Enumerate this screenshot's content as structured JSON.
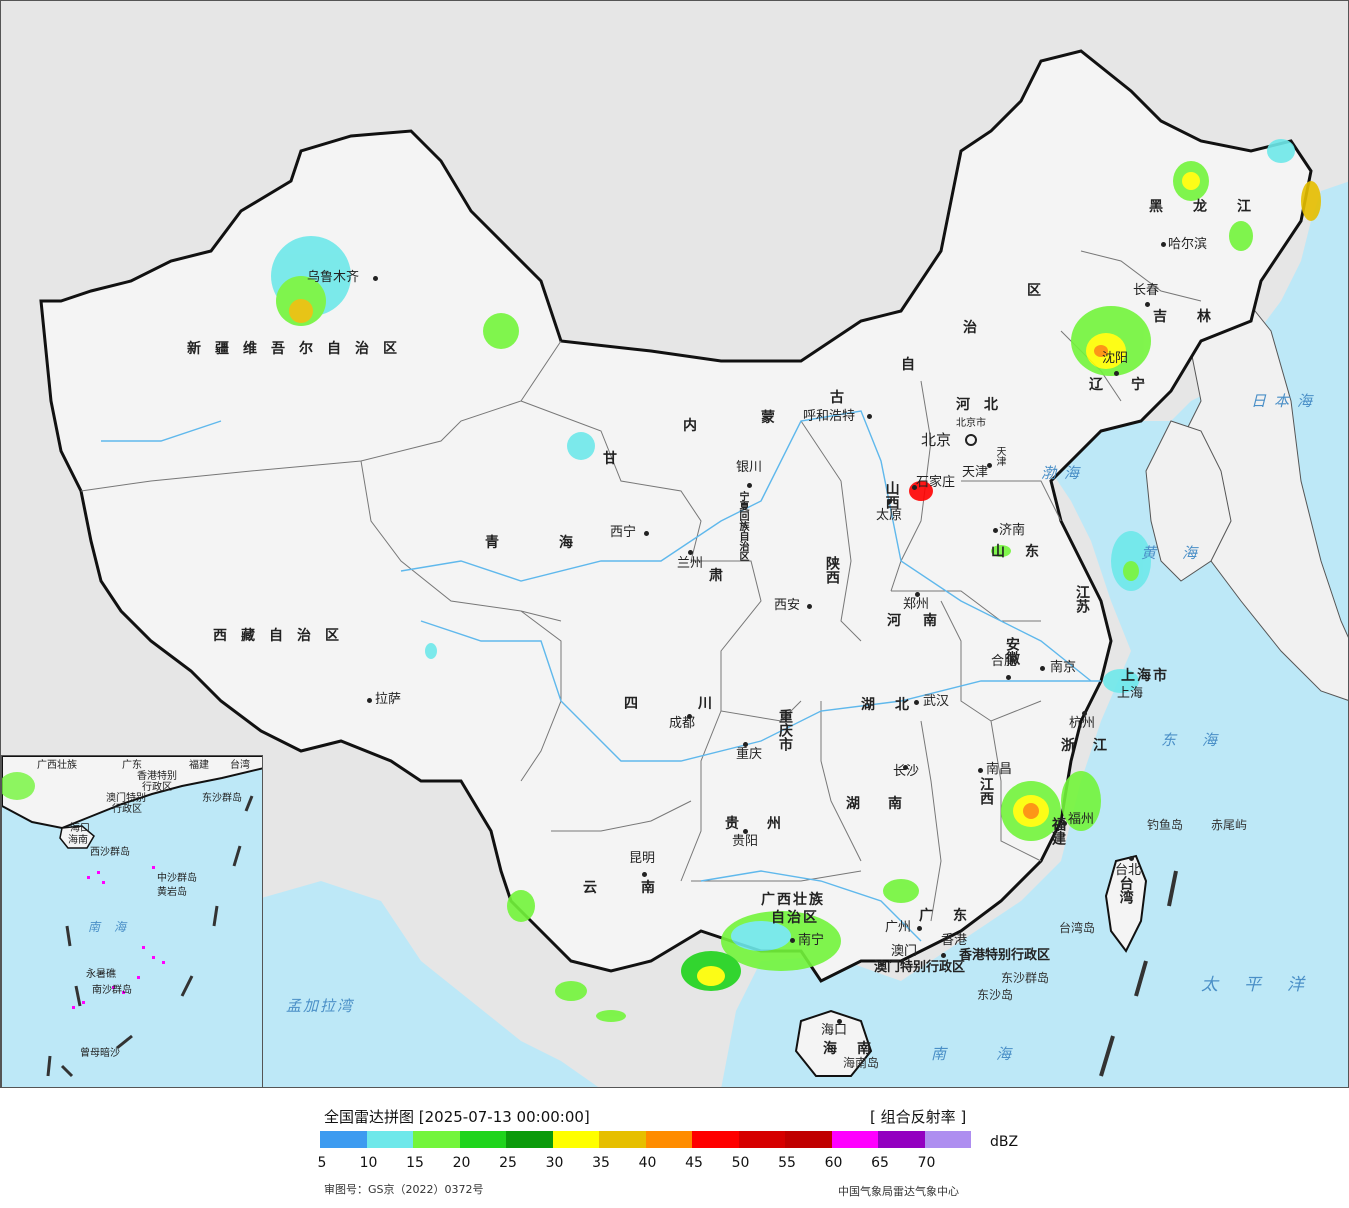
{
  "legend": {
    "title": "全国雷达拼图 [2025-07-13 00:00:00]",
    "product": "[ 组合反射率 ]",
    "unit": "dBZ",
    "colors": [
      "#3d9bf0",
      "#6ee8ea",
      "#73f53b",
      "#1fd41c",
      "#0b9a0b",
      "#ffff00",
      "#e6bf00",
      "#ff8c00",
      "#ff0000",
      "#d60000",
      "#c00000",
      "#ff00ff",
      "#9300c0",
      "#ae8ef0"
    ],
    "ticks": [
      "5",
      "10",
      "15",
      "20",
      "25",
      "30",
      "35",
      "40",
      "45",
      "50",
      "55",
      "60",
      "65",
      "70"
    ],
    "review_no": "审图号：GS京（2022）0372号",
    "source": "中国气象局雷达气象中心"
  },
  "provinces": {
    "xinjiang": "新疆维吾尔自治区",
    "xizang": "西藏自治区",
    "qinghai": "青海",
    "gansu": "甘",
    "gansu2": "肃",
    "neimenggu": [
      "内",
      "蒙",
      "古",
      "自",
      "治",
      "区"
    ],
    "heilongjiang": "黑龙江",
    "jilin": "吉林",
    "liaoning": "辽宁",
    "hebei": "河北",
    "shanxi": "山西",
    "shandong": "山东",
    "henan": "河南",
    "shaanxi": "陕西",
    "sichuan": "四川",
    "chongqing": "重庆市",
    "hubei": "湖北",
    "hunan": "湖南",
    "anhui": "安徽",
    "jiangsu": "江苏",
    "shanghai": "上海市",
    "zhejiang": "浙江",
    "jiangxi": "江西",
    "fujian": "福建",
    "guizhou": "贵州",
    "yunnan": "云南",
    "guangxi": "广西壮族",
    "guangxi2": "自治区",
    "guangdong": "广东",
    "hainan": "海南",
    "taiwan": "台湾",
    "ningxia": "宁夏回族自治区",
    "hk": "香港特别行政区",
    "macau": "澳门特别行政区"
  },
  "cities": {
    "urumqi": "乌鲁木齐",
    "lhasa": "拉萨",
    "xining": "西宁",
    "lanzhou": "兰州",
    "yinchuan": "银川",
    "hohhot": "呼和浩特",
    "beijing": "北京",
    "beijing_city": "北京市",
    "tianjin": "天津",
    "tianjin_city": "天津",
    "shijiazhuang": "石家庄",
    "taiyuan": "太原",
    "jinan": "济南",
    "zhengzhou": "郑州",
    "xian": "西安",
    "chengdu": "成都",
    "chongqing": "重庆",
    "wuhan": "武汉",
    "hefei": "合肥",
    "nanjing": "南京",
    "shanghai": "上海",
    "hangzhou": "杭州",
    "nanchang": "南昌",
    "changsha": "长沙",
    "fuzhou": "福州",
    "guiyang": "贵阳",
    "kunming": "昆明",
    "nanning": "南宁",
    "guangzhou": "广州",
    "hongkong": "香港",
    "macau": "澳门",
    "haikou": "海口",
    "taipei": "台北",
    "harbin": "哈尔滨",
    "changchun": "长春",
    "shenyang": "沈阳"
  },
  "seas": {
    "japan_sea": "日本海",
    "bohai": "渤海",
    "yellow_sea": "黄海",
    "east_sea": "东海",
    "south_sea": "南海",
    "pacific": "太平洋",
    "bengal": "孟加拉湾"
  },
  "islands": {
    "diaoyu": "钓鱼岛",
    "chiwei": "赤尾屿",
    "taiwan_isl": "台湾岛",
    "dongsha_qd": "东沙群岛",
    "dongsha": "东沙岛",
    "hainan_isl": "海南岛"
  },
  "inset": {
    "guangxi": "广西壮族",
    "guangdong": "广东",
    "fujian": "福建",
    "taiwan": "台湾",
    "hk": "香港特别",
    "hk2": "行政区",
    "macau": "澳门特别",
    "macau2": "行政区",
    "dongsha": "东沙群岛",
    "hainan": "海南",
    "haikou": "海口",
    "xisha": "西沙群岛",
    "zhongsha": "中沙群岛",
    "huangyan": "黄岩岛",
    "nansha": "南沙群岛",
    "yongshu": "永暑礁",
    "zengmu": "曾母暗沙",
    "south_sea": "南海"
  }
}
